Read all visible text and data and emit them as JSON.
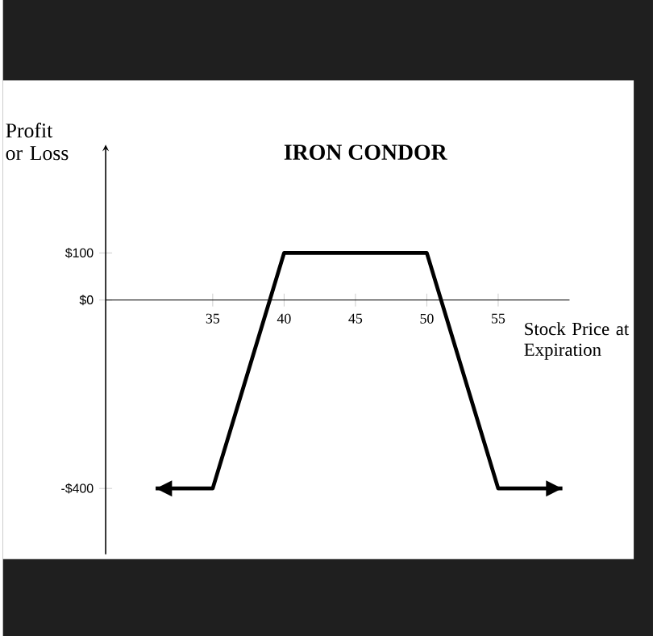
{
  "chart_data": {
    "type": "line",
    "title": "IRON CONDOR",
    "xlabel": "Stock Price at Expiration",
    "ylabel": "Profit or Loss",
    "x": [
      31,
      35,
      40,
      50,
      55,
      59.5
    ],
    "series": [
      {
        "color": "#000000",
        "values": [
          -400,
          -400,
          100,
          100,
          -400,
          -400
        ]
      }
    ],
    "xlim": [
      27.5,
      60
    ],
    "ylim": [
      -540,
      330
    ],
    "xticks": [
      35,
      40,
      45,
      50,
      55
    ],
    "yticks": [
      {
        "value": 100,
        "label": "$100"
      },
      {
        "value": 0,
        "label": "$0"
      },
      {
        "value": -400,
        "label": "-$400"
      }
    ],
    "grid": false,
    "marker": "none",
    "line_style": "solid"
  }
}
